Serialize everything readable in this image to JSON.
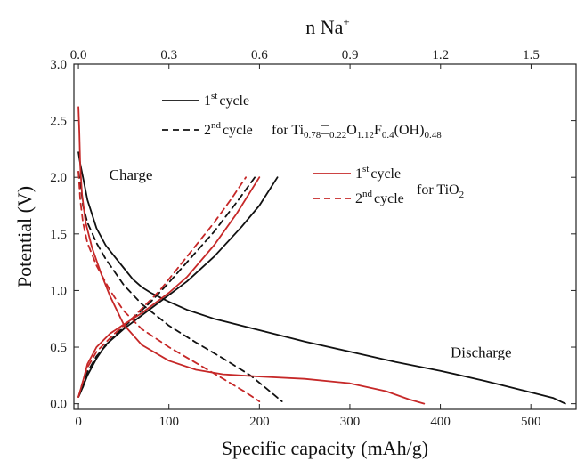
{
  "chart_data": {
    "type": "line",
    "title": "",
    "xlabel": "Specific capacity (mAh/g)",
    "ylabel": "Potential (V)",
    "top_xlabel": "n Na",
    "top_xlabel_sup": "+",
    "xlim": [
      -5,
      550
    ],
    "ylim": [
      -0.05,
      3.0
    ],
    "x_ticks": [
      0,
      100,
      200,
      300,
      400,
      500
    ],
    "y_ticks": [
      0.0,
      0.5,
      1.0,
      1.5,
      2.0,
      2.5,
      3.0
    ],
    "top_axis": {
      "ticks": [
        {
          "value": 0.0,
          "label": "0.0"
        },
        {
          "value": 0.3,
          "label": "0.3"
        },
        {
          "value": 0.6,
          "label": "0.6"
        },
        {
          "value": 0.9,
          "label": "0.9"
        },
        {
          "value": 1.2,
          "label": "1.2"
        },
        {
          "value": 1.5,
          "label": "1.5"
        }
      ],
      "capacity_per_unit": 333.5
    },
    "grid": false,
    "annotations": [
      {
        "text": "Charge",
        "x": 58,
        "y": 1.98
      },
      {
        "text": "Discharge",
        "x": 445,
        "y": 0.41
      }
    ],
    "legend": [
      {
        "group": "Ti",
        "color": "#111111",
        "entries": [
          {
            "cycle_num": "1",
            "cycle_sup": "st",
            "cycle_word": "cycle",
            "dash": "solid"
          },
          {
            "cycle_num": "2",
            "cycle_sup": "nd",
            "cycle_word": "cycle",
            "dash": "dashed"
          }
        ],
        "label_prefix": "for Ti",
        "label_parts": [
          {
            "t": "0.78",
            "sub": true
          },
          {
            "t": "□",
            "sub": false
          },
          {
            "t": "0.22",
            "sub": true
          },
          {
            "t": "O",
            "sub": false
          },
          {
            "t": "1.12",
            "sub": true
          },
          {
            "t": "F",
            "sub": false
          },
          {
            "t": "0.4",
            "sub": true
          },
          {
            "t": "(OH)",
            "sub": false
          },
          {
            "t": "0.48",
            "sub": true
          }
        ]
      },
      {
        "group": "TiO2",
        "color": "#c62828",
        "entries": [
          {
            "cycle_num": "1",
            "cycle_sup": "st",
            "cycle_word": "cycle",
            "dash": "solid"
          },
          {
            "cycle_num": "2",
            "cycle_sup": "nd",
            "cycle_word": "cycle",
            "dash": "dashed"
          }
        ],
        "label_prefix": "for TiO",
        "label_parts": [
          {
            "t": "2",
            "sub": true
          }
        ]
      }
    ],
    "series": [
      {
        "group": "Ti",
        "color": "#111111",
        "dash": "solid",
        "segment": "discharge",
        "points": [
          [
            0,
            2.22
          ],
          [
            2,
            2.12
          ],
          [
            5,
            2.0
          ],
          [
            10,
            1.8
          ],
          [
            20,
            1.55
          ],
          [
            30,
            1.4
          ],
          [
            40,
            1.3
          ],
          [
            50,
            1.2
          ],
          [
            60,
            1.1
          ],
          [
            70,
            1.03
          ],
          [
            80,
            0.98
          ],
          [
            90,
            0.94
          ],
          [
            100,
            0.9
          ],
          [
            120,
            0.83
          ],
          [
            150,
            0.75
          ],
          [
            200,
            0.65
          ],
          [
            250,
            0.55
          ],
          [
            300,
            0.46
          ],
          [
            350,
            0.37
          ],
          [
            400,
            0.29
          ],
          [
            450,
            0.2
          ],
          [
            500,
            0.1
          ],
          [
            525,
            0.05
          ],
          [
            538,
            0.0
          ]
        ]
      },
      {
        "group": "Ti",
        "color": "#111111",
        "dash": "solid",
        "segment": "charge",
        "points": [
          [
            0,
            0.06
          ],
          [
            5,
            0.15
          ],
          [
            10,
            0.25
          ],
          [
            20,
            0.4
          ],
          [
            30,
            0.52
          ],
          [
            50,
            0.66
          ],
          [
            70,
            0.78
          ],
          [
            100,
            0.96
          ],
          [
            120,
            1.08
          ],
          [
            150,
            1.3
          ],
          [
            180,
            1.56
          ],
          [
            200,
            1.75
          ],
          [
            220,
            2.0
          ]
        ]
      },
      {
        "group": "Ti",
        "color": "#111111",
        "dash": "dashed",
        "segment": "discharge",
        "points": [
          [
            0,
            2.05
          ],
          [
            3,
            1.9
          ],
          [
            5,
            1.75
          ],
          [
            10,
            1.6
          ],
          [
            20,
            1.42
          ],
          [
            30,
            1.28
          ],
          [
            50,
            1.05
          ],
          [
            70,
            0.88
          ],
          [
            100,
            0.69
          ],
          [
            130,
            0.54
          ],
          [
            160,
            0.4
          ],
          [
            190,
            0.25
          ],
          [
            210,
            0.12
          ],
          [
            225,
            0.02
          ]
        ]
      },
      {
        "group": "Ti",
        "color": "#111111",
        "dash": "dashed",
        "segment": "charge",
        "points": [
          [
            0,
            0.06
          ],
          [
            5,
            0.15
          ],
          [
            10,
            0.28
          ],
          [
            20,
            0.42
          ],
          [
            40,
            0.6
          ],
          [
            60,
            0.75
          ],
          [
            80,
            0.9
          ],
          [
            100,
            1.07
          ],
          [
            120,
            1.25
          ],
          [
            150,
            1.52
          ],
          [
            175,
            1.78
          ],
          [
            195,
            2.0
          ]
        ]
      },
      {
        "group": "TiO2",
        "color": "#c62828",
        "dash": "solid",
        "segment": "discharge",
        "points": [
          [
            0,
            2.62
          ],
          [
            1,
            2.4
          ],
          [
            2,
            2.1
          ],
          [
            4,
            1.85
          ],
          [
            8,
            1.6
          ],
          [
            15,
            1.38
          ],
          [
            25,
            1.15
          ],
          [
            35,
            0.95
          ],
          [
            50,
            0.7
          ],
          [
            70,
            0.52
          ],
          [
            100,
            0.38
          ],
          [
            130,
            0.3
          ],
          [
            160,
            0.26
          ],
          [
            200,
            0.24
          ],
          [
            250,
            0.22
          ],
          [
            300,
            0.18
          ],
          [
            340,
            0.11
          ],
          [
            365,
            0.04
          ],
          [
            382,
            0.0
          ]
        ]
      },
      {
        "group": "TiO2",
        "color": "#c62828",
        "dash": "solid",
        "segment": "charge",
        "points": [
          [
            0,
            0.06
          ],
          [
            5,
            0.2
          ],
          [
            10,
            0.35
          ],
          [
            20,
            0.5
          ],
          [
            35,
            0.62
          ],
          [
            50,
            0.7
          ],
          [
            70,
            0.8
          ],
          [
            100,
            0.98
          ],
          [
            120,
            1.12
          ],
          [
            150,
            1.4
          ],
          [
            175,
            1.68
          ],
          [
            200,
            2.0
          ]
        ]
      },
      {
        "group": "TiO2",
        "color": "#c62828",
        "dash": "dashed",
        "segment": "discharge",
        "points": [
          [
            0,
            2.05
          ],
          [
            2,
            1.8
          ],
          [
            5,
            1.6
          ],
          [
            10,
            1.42
          ],
          [
            20,
            1.22
          ],
          [
            35,
            1.0
          ],
          [
            50,
            0.82
          ],
          [
            70,
            0.66
          ],
          [
            100,
            0.5
          ],
          [
            130,
            0.36
          ],
          [
            160,
            0.22
          ],
          [
            185,
            0.1
          ],
          [
            200,
            0.02
          ]
        ]
      },
      {
        "group": "TiO2",
        "color": "#c62828",
        "dash": "dashed",
        "segment": "charge",
        "points": [
          [
            0,
            0.06
          ],
          [
            5,
            0.2
          ],
          [
            10,
            0.32
          ],
          [
            20,
            0.46
          ],
          [
            40,
            0.62
          ],
          [
            60,
            0.76
          ],
          [
            90,
            1.0
          ],
          [
            120,
            1.3
          ],
          [
            150,
            1.6
          ],
          [
            170,
            1.82
          ],
          [
            185,
            2.0
          ]
        ]
      }
    ]
  }
}
